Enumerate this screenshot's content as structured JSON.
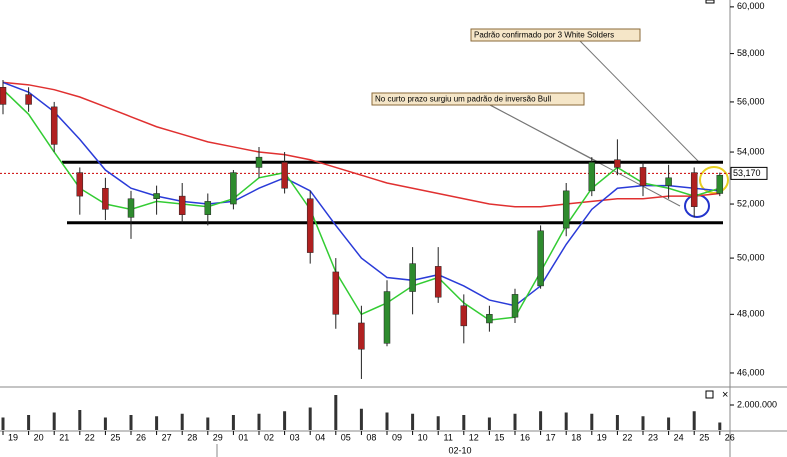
{
  "chart_data": [
    {
      "type": "candlestick",
      "categories": [
        "19",
        "20",
        "21",
        "22",
        "25",
        "26",
        "27",
        "28",
        "29",
        "01",
        "02",
        "03",
        "04",
        "05",
        "08",
        "09",
        "10",
        "11",
        "12",
        "15",
        "16",
        "17",
        "18",
        "19",
        "22",
        "23",
        "24",
        "25",
        "26"
      ],
      "x_group_label": "02-10",
      "open": [
        56600,
        56300,
        55800,
        53200,
        52600,
        51500,
        52200,
        52300,
        51600,
        52000,
        53400,
        53600,
        52200,
        49500,
        47700,
        47000,
        48800,
        49700,
        48300,
        47700,
        47900,
        49000,
        51100,
        52500,
        53700,
        53400,
        52700,
        53200,
        52400
      ],
      "high": [
        56900,
        56600,
        56000,
        53400,
        53000,
        52500,
        52700,
        52800,
        52400,
        53300,
        54200,
        54000,
        52500,
        50000,
        48300,
        49200,
        50400,
        50400,
        48700,
        48300,
        48900,
        51200,
        52800,
        53800,
        54500,
        53600,
        53500,
        53400,
        53200
      ],
      "low": [
        55500,
        55600,
        54000,
        51600,
        51400,
        50700,
        51600,
        51300,
        51200,
        51800,
        53000,
        52400,
        49800,
        47500,
        45800,
        46900,
        48000,
        48400,
        47000,
        47400,
        47700,
        48900,
        50800,
        52300,
        53100,
        52300,
        52200,
        51500,
        52300
      ],
      "close": [
        55900,
        55900,
        54300,
        52300,
        51800,
        52200,
        52400,
        51600,
        52100,
        53200,
        53800,
        52600,
        50200,
        48000,
        46800,
        48800,
        49800,
        48600,
        47600,
        48000,
        48700,
        51000,
        52500,
        53600,
        53400,
        52700,
        53000,
        51900,
        53100
      ],
      "up_color": "#2e8b2e",
      "down_color": "#b02020",
      "moving_averages": [
        {
          "color": "#e03030",
          "values": [
            56800,
            56700,
            56500,
            56200,
            55800,
            55400,
            55000,
            54700,
            54400,
            54200,
            54000,
            53900,
            53700,
            53400,
            53100,
            52800,
            52600,
            52400,
            52200,
            52000,
            51900,
            51900,
            52000,
            52100,
            52200,
            52200,
            52300,
            52300,
            52400
          ]
        },
        {
          "color": "#2a3bd8",
          "values": [
            56800,
            56400,
            55600,
            54500,
            53300,
            52600,
            52300,
            52100,
            52000,
            52100,
            52600,
            53000,
            52500,
            51200,
            50000,
            49300,
            49200,
            49400,
            49000,
            48500,
            48300,
            49000,
            50500,
            51800,
            52600,
            52700,
            52700,
            52600,
            52500
          ]
        },
        {
          "color": "#33cc33",
          "values": [
            56500,
            55500,
            54000,
            52600,
            52000,
            51800,
            52100,
            52000,
            51900,
            52200,
            53000,
            53200,
            51800,
            49500,
            48000,
            48400,
            49000,
            49300,
            48400,
            47800,
            47900,
            49500,
            51200,
            52600,
            53400,
            52800,
            52600,
            52300,
            52600
          ]
        }
      ],
      "hlines": [
        {
          "value": 53600,
          "color": "#000"
        },
        {
          "value": 51300,
          "color": "#000"
        }
      ],
      "last_price": {
        "value": 53170,
        "label": "53,170",
        "color": "#cc0000"
      },
      "annotations": [
        "Padrão confirmado por 3 White Solders",
        "No curto prazo surgiu um padrão de inversão Bull"
      ],
      "log_scale": true,
      "ylim": [
        45600,
        60300
      ],
      "yticks": [
        {
          "value": 46000,
          "label": "46,000"
        },
        {
          "value": 48000,
          "label": "48,000"
        },
        {
          "value": 50000,
          "label": "50,000"
        },
        {
          "value": 52000,
          "label": "52,000"
        },
        {
          "value": 54000,
          "label": "54,000"
        },
        {
          "value": 56000,
          "label": "56,000"
        },
        {
          "value": 58000,
          "label": "58,000"
        },
        {
          "value": 60000,
          "label": "60,000"
        }
      ]
    },
    {
      "type": "bar",
      "values": [
        1000000,
        1200000,
        1400000,
        1600000,
        1000000,
        1200000,
        1100000,
        1300000,
        1000000,
        1200000,
        1300000,
        1500000,
        1800000,
        2800000,
        1700000,
        1400000,
        1300000,
        1100000,
        1200000,
        1000000,
        1300000,
        1500000,
        1400000,
        1300000,
        1200000,
        1100000,
        1000000,
        1500000,
        600000
      ],
      "color": "#333333",
      "ylim": [
        0,
        3200000
      ],
      "yticks": [
        {
          "value": 2000000,
          "label": "2.000.000"
        }
      ]
    }
  ]
}
